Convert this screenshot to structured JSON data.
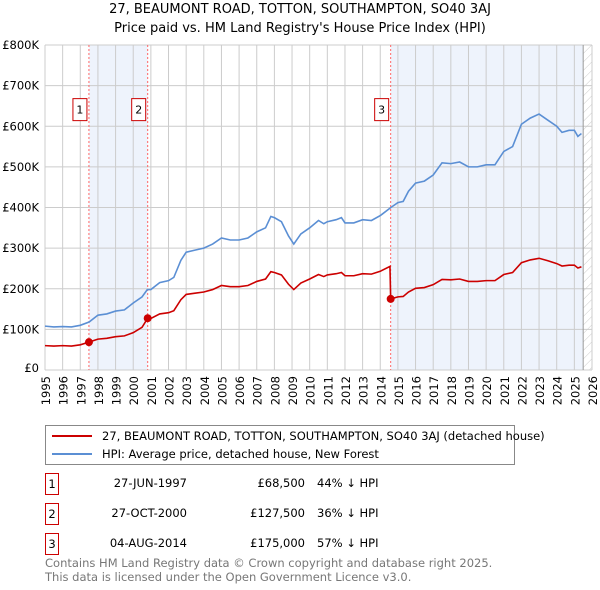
{
  "chart_data": {
    "type": "line",
    "title": "27, BEAUMONT ROAD, TOTTON, SOUTHAMPTON, SO40 3AJ",
    "subtitle": "Price paid vs. HM Land Registry's House Price Index (HPI)",
    "xlim": [
      1995,
      2026
    ],
    "ylim": [
      0,
      800000
    ],
    "yticks": [
      "£0",
      "£100K",
      "£200K",
      "£300K",
      "£400K",
      "£500K",
      "£600K",
      "£700K",
      "£800K"
    ],
    "xticks": [
      "1995",
      "1996",
      "1997",
      "1998",
      "1999",
      "2000",
      "2001",
      "2002",
      "2003",
      "2004",
      "2005",
      "2006",
      "2007",
      "2008",
      "2009",
      "2010",
      "2011",
      "2012",
      "2013",
      "2014",
      "2015",
      "2016",
      "2017",
      "2018",
      "2019",
      "2020",
      "2021",
      "2022",
      "2023",
      "2024",
      "2025",
      "2026"
    ],
    "grid": true,
    "colors": {
      "property": "#cc0000",
      "hpi": "#5b8fd4",
      "shade": "#eef3fc"
    },
    "series": [
      {
        "name": "27, BEAUMONT ROAD, TOTTON, SOUTHAMPTON, SO40 3AJ (detached house)",
        "points": [
          [
            1995,
            60
          ],
          [
            1995.5,
            59
          ],
          [
            1996,
            60
          ],
          [
            1996.5,
            59
          ],
          [
            1997,
            62
          ],
          [
            1997.49,
            68.5
          ],
          [
            1998,
            76
          ],
          [
            1998.5,
            78
          ],
          [
            1999,
            82
          ],
          [
            1999.5,
            84
          ],
          [
            2000,
            92
          ],
          [
            2000.5,
            105
          ],
          [
            2000.82,
            127.5
          ],
          [
            2001,
            127
          ],
          [
            2001.5,
            138
          ],
          [
            2002,
            141
          ],
          [
            2002.3,
            146
          ],
          [
            2002.7,
            173
          ],
          [
            2003,
            186
          ],
          [
            2003.5,
            189
          ],
          [
            2004,
            192
          ],
          [
            2004.5,
            198
          ],
          [
            2005,
            208
          ],
          [
            2005.5,
            205
          ],
          [
            2006,
            205
          ],
          [
            2006.5,
            208
          ],
          [
            2007,
            218
          ],
          [
            2007.5,
            224
          ],
          [
            2007.8,
            242
          ],
          [
            2008,
            240
          ],
          [
            2008.4,
            234
          ],
          [
            2008.8,
            211
          ],
          [
            2009.1,
            198
          ],
          [
            2009.5,
            214
          ],
          [
            2010,
            224
          ],
          [
            2010.5,
            235
          ],
          [
            2010.8,
            230
          ],
          [
            2011,
            234
          ],
          [
            2011.5,
            237
          ],
          [
            2011.8,
            240
          ],
          [
            2012,
            232
          ],
          [
            2012.5,
            232
          ],
          [
            2013,
            237
          ],
          [
            2013.5,
            236
          ],
          [
            2014,
            243
          ],
          [
            2014.55,
            255
          ],
          [
            2014.59,
            175
          ],
          [
            2015,
            180
          ],
          [
            2015.3,
            181
          ],
          [
            2015.6,
            192
          ],
          [
            2016,
            201
          ],
          [
            2016.5,
            203
          ],
          [
            2017,
            210
          ],
          [
            2017.5,
            223
          ],
          [
            2018,
            222
          ],
          [
            2018.5,
            224
          ],
          [
            2019,
            218
          ],
          [
            2019.5,
            218
          ],
          [
            2020,
            220
          ],
          [
            2020.5,
            220
          ],
          [
            2021,
            235
          ],
          [
            2021.5,
            240
          ],
          [
            2022,
            264
          ],
          [
            2022.5,
            271
          ],
          [
            2023,
            275
          ],
          [
            2023.5,
            269
          ],
          [
            2024,
            262
          ],
          [
            2024.3,
            256
          ],
          [
            2024.7,
            258
          ],
          [
            2025,
            258
          ],
          [
            2025.2,
            251
          ],
          [
            2025.4,
            254
          ]
        ]
      },
      {
        "name": "HPI: Average price, detached house, New Forest",
        "points": [
          [
            1995,
            108
          ],
          [
            1995.5,
            106
          ],
          [
            1996,
            107
          ],
          [
            1996.5,
            106
          ],
          [
            1997,
            110
          ],
          [
            1997.5,
            118
          ],
          [
            1998,
            135
          ],
          [
            1998.5,
            138
          ],
          [
            1999,
            145
          ],
          [
            1999.5,
            148
          ],
          [
            2000,
            165
          ],
          [
            2000.5,
            180
          ],
          [
            2000.8,
            198
          ],
          [
            2001,
            198
          ],
          [
            2001.5,
            215
          ],
          [
            2002,
            220
          ],
          [
            2002.3,
            228
          ],
          [
            2002.7,
            270
          ],
          [
            2003,
            290
          ],
          [
            2003.5,
            295
          ],
          [
            2004,
            300
          ],
          [
            2004.5,
            310
          ],
          [
            2005,
            325
          ],
          [
            2005.5,
            320
          ],
          [
            2006,
            320
          ],
          [
            2006.5,
            325
          ],
          [
            2007,
            340
          ],
          [
            2007.5,
            350
          ],
          [
            2007.8,
            378
          ],
          [
            2008,
            375
          ],
          [
            2008.4,
            365
          ],
          [
            2008.8,
            330
          ],
          [
            2009.1,
            310
          ],
          [
            2009.5,
            335
          ],
          [
            2010,
            350
          ],
          [
            2010.5,
            368
          ],
          [
            2010.8,
            360
          ],
          [
            2011,
            365
          ],
          [
            2011.5,
            370
          ],
          [
            2011.8,
            375
          ],
          [
            2012,
            362
          ],
          [
            2012.5,
            362
          ],
          [
            2013,
            370
          ],
          [
            2013.5,
            368
          ],
          [
            2014,
            380
          ],
          [
            2014.6,
            400
          ],
          [
            2015,
            412
          ],
          [
            2015.3,
            415
          ],
          [
            2015.6,
            440
          ],
          [
            2016,
            460
          ],
          [
            2016.5,
            465
          ],
          [
            2017,
            480
          ],
          [
            2017.5,
            510
          ],
          [
            2018,
            508
          ],
          [
            2018.5,
            512
          ],
          [
            2019,
            500
          ],
          [
            2019.5,
            500
          ],
          [
            2020,
            505
          ],
          [
            2020.5,
            505
          ],
          [
            2021,
            538
          ],
          [
            2021.5,
            550
          ],
          [
            2022,
            605
          ],
          [
            2022.5,
            620
          ],
          [
            2023,
            630
          ],
          [
            2023.5,
            615
          ],
          [
            2024,
            600
          ],
          [
            2024.3,
            585
          ],
          [
            2024.7,
            590
          ],
          [
            2025,
            590
          ],
          [
            2025.2,
            575
          ],
          [
            2025.4,
            582
          ]
        ]
      }
    ],
    "sales": [
      {
        "n": "1",
        "x": 1997.49,
        "y": 68.5,
        "date": "27-JUN-1997",
        "price": "£68,500",
        "hpi": "44% ↓ HPI"
      },
      {
        "n": "2",
        "x": 2000.82,
        "y": 127.5,
        "date": "27-OCT-2000",
        "price": "£127,500",
        "hpi": "36% ↓ HPI"
      },
      {
        "n": "3",
        "x": 2014.59,
        "y": 175,
        "date": "04-AUG-2014",
        "price": "£175,000",
        "hpi": "57% ↓ HPI"
      }
    ],
    "forecast_start": 2025.5
  },
  "footer": [
    "Contains HM Land Registry data © Crown copyright and database right 2025.",
    "This data is licensed under the Open Government Licence v3.0."
  ]
}
